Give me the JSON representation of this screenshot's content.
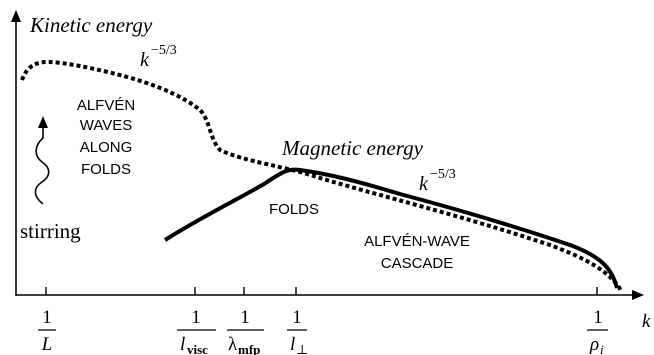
{
  "axis": {
    "y_label": "Kinetic energy",
    "x_label": "k"
  },
  "curves": {
    "magnetic_label": "Magnetic energy",
    "kinetic_slope": {
      "base": "k",
      "exp": "−5/3"
    },
    "magnetic_slope": {
      "base": "k",
      "exp": "−5/3"
    }
  },
  "annotations": {
    "alfven_lines": [
      "ALFVÉN",
      "WAVES",
      "ALONG",
      "FOLDS"
    ],
    "stirring": "stirring",
    "folds": "FOLDS",
    "cascade_lines": [
      "ALFVÉN-WAVE",
      "CASCADE"
    ]
  },
  "ticks": [
    {
      "num": "1",
      "den": "L",
      "sub": ""
    },
    {
      "num": "1",
      "den": "l",
      "sub": "visc"
    },
    {
      "num": "1",
      "den": "λ",
      "sub": "mfp"
    },
    {
      "num": "1",
      "den": "l",
      "sub": "⊥"
    },
    {
      "num": "1",
      "den": "ρ",
      "sub": "i"
    }
  ]
}
